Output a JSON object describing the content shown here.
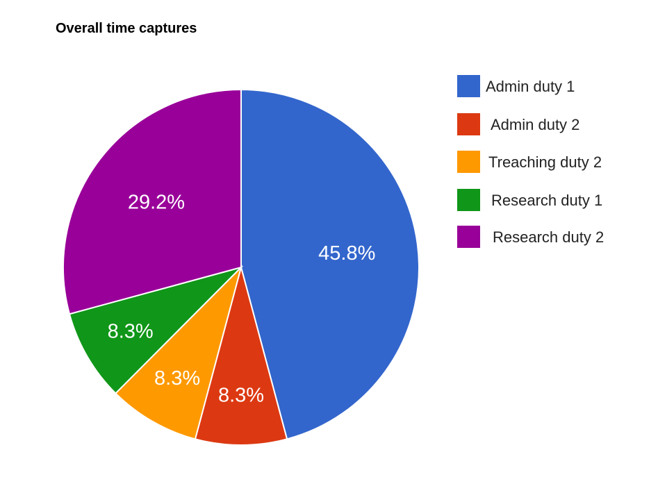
{
  "chart_data": {
    "type": "pie",
    "title": "Overall time captures",
    "legend": "right",
    "slices": [
      {
        "name": "Admin duty 1",
        "value": 45.8,
        "label": "45.8%",
        "color": "#3366cc"
      },
      {
        "name": "Admin duty 2",
        "value": 8.3,
        "label": "8.3%",
        "color": "#dc3912"
      },
      {
        "name": "Treaching duty 2",
        "value": 8.3,
        "label": "8.3%",
        "color": "#ff9900"
      },
      {
        "name": "Research duty 1",
        "value": 8.3,
        "label": "8.3%",
        "color": "#109618"
      },
      {
        "name": "Research duty 2",
        "value": 29.2,
        "label": "29.2%",
        "color": "#990099"
      }
    ]
  }
}
